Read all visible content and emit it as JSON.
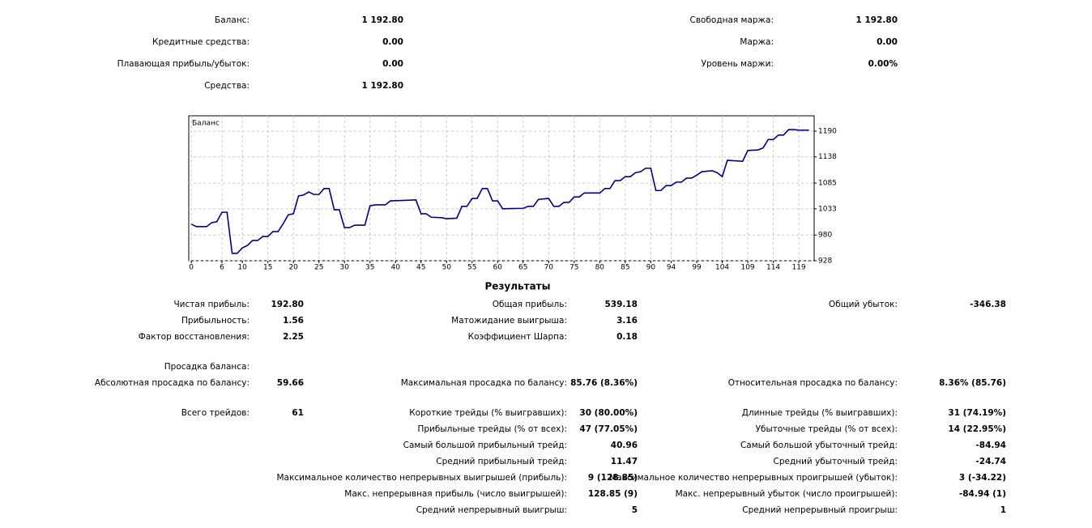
{
  "summary": {
    "left": [
      {
        "label": "Баланс:",
        "value": "1 192.80"
      },
      {
        "label": "Кредитные средства:",
        "value": "0.00"
      },
      {
        "label": "Плавающая прибыль/убыток:",
        "value": "0.00"
      },
      {
        "label": "Средства:",
        "value": "1 192.80"
      }
    ],
    "right": [
      {
        "label": "Свободная маржа:",
        "value": "1 192.80"
      },
      {
        "label": "Маржа:",
        "value": "0.00"
      },
      {
        "label": "Уровень маржи:",
        "value": "0.00%"
      }
    ]
  },
  "chart_data": {
    "type": "line",
    "title": "Баланс",
    "color": "#00008b",
    "x": [
      0,
      1,
      3,
      4,
      5,
      6,
      7,
      8,
      9,
      10,
      11,
      12,
      13,
      14,
      15,
      16,
      17,
      18,
      19,
      20,
      21,
      22,
      23,
      24,
      25,
      26,
      27,
      28,
      29,
      30,
      31,
      32,
      34,
      35,
      36,
      38,
      39,
      44,
      45,
      46,
      47,
      49,
      50,
      52,
      53,
      54,
      55,
      56,
      57,
      58,
      59,
      60,
      61,
      65,
      66,
      67,
      68,
      70,
      71,
      72,
      73,
      74,
      75,
      76,
      77,
      80,
      81,
      82,
      83,
      84,
      85,
      86,
      87,
      88,
      89,
      90,
      91,
      92,
      93,
      94,
      95,
      96,
      97,
      98,
      99,
      100,
      102,
      103,
      104,
      105,
      108,
      109,
      111,
      112,
      113,
      114,
      115,
      116,
      117,
      118,
      119,
      121
    ],
    "values": [
      1002,
      997,
      997,
      1005,
      1007,
      1026,
      1026,
      943,
      943,
      954,
      959,
      969,
      969,
      977,
      977,
      987,
      987,
      1003,
      1021,
      1023,
      1059,
      1061,
      1067,
      1062,
      1062,
      1074,
      1074,
      1031,
      1031,
      995,
      995,
      1000,
      1000,
      1039,
      1041,
      1041,
      1049,
      1051,
      1023,
      1023,
      1016,
      1015,
      1013,
      1014,
      1038,
      1038,
      1054,
      1054,
      1074,
      1074,
      1049,
      1049,
      1033,
      1034,
      1038,
      1038,
      1052,
      1054,
      1038,
      1038,
      1046,
      1046,
      1057,
      1057,
      1065,
      1065,
      1074,
      1074,
      1090,
      1090,
      1098,
      1098,
      1106,
      1108,
      1115,
      1115,
      1070,
      1070,
      1080,
      1080,
      1087,
      1087,
      1095,
      1095,
      1101,
      1108,
      1110,
      1106,
      1098,
      1131,
      1129,
      1151,
      1152,
      1156,
      1173,
      1173,
      1182,
      1182,
      1193,
      1193,
      1192,
      1192
    ],
    "xlim": [
      -0.5,
      122
    ],
    "xticks": [
      0,
      6,
      10,
      15,
      20,
      25,
      30,
      35,
      40,
      45,
      50,
      55,
      60,
      65,
      70,
      75,
      80,
      85,
      90,
      94,
      99,
      104,
      109,
      114,
      119
    ],
    "ylim": [
      928,
      1221
    ],
    "yticks": [
      928,
      980,
      1033,
      1085,
      1138,
      1190
    ],
    "grid": true
  },
  "results": {
    "title": "Результаты",
    "sections": [
      [
        {
          "left": {
            "label": "Чистая прибыль:",
            "value": "192.80"
          },
          "middle": {
            "label": "Общая прибыль:",
            "value": "539.18"
          },
          "right": {
            "label": "Общий убыток:",
            "value": "-346.38"
          }
        },
        {
          "left": {
            "label": "Прибыльность:",
            "value": "1.56"
          },
          "middle": {
            "label": "Матожидание выигрыша:",
            "value": "3.16"
          }
        },
        {
          "left": {
            "label": "Фактор восстановления:",
            "value": "2.25"
          },
          "middle": {
            "label": "Коэффициент Шарпа:",
            "value": "0.18"
          }
        }
      ],
      [
        {
          "left": {
            "label": "Просадка баланса:"
          }
        },
        {
          "left": {
            "label": "Абсолютная просадка по балансу:",
            "value": "59.66"
          },
          "middle": {
            "label": "Максимальная просадка по балансу:",
            "value": "85.76 (8.36%)"
          },
          "right": {
            "label": "Относительная просадка по балансу:",
            "value": "8.36% (85.76)"
          }
        }
      ],
      [
        {
          "left": {
            "label": "Всего трейдов:",
            "value": "61"
          },
          "middle": {
            "label": "Короткие трейды (% выигравших):",
            "value": "30 (80.00%)"
          },
          "right": {
            "label": "Длинные трейды (% выигравших):",
            "value": "31 (74.19%)"
          }
        },
        {
          "middle": {
            "label": "Прибыльные трейды (% от всех):",
            "value": "47 (77.05%)"
          },
          "right": {
            "label": "Убыточные трейды (% от всех):",
            "value": "14 (22.95%)"
          }
        },
        {
          "middle": {
            "label": "Самый большой прибыльный трейд:",
            "value": "40.96"
          },
          "right": {
            "label": "Самый большой убыточный трейд:",
            "value": "-84.94"
          }
        },
        {
          "middle": {
            "label": "Средний прибыльный трейд:",
            "value": "11.47"
          },
          "right": {
            "label": "Средний убыточный трейд:",
            "value": "-24.74"
          }
        },
        {
          "middle": {
            "label": "Максимальное количество непрерывных выигрышей (прибыль):",
            "value": "9 (128.85)"
          },
          "right": {
            "label": "Максимальное количество непрерывных проигрышей (убыток):",
            "value": "3 (-34.22)"
          }
        },
        {
          "middle": {
            "label": "Макс. непрерывная прибыль (число выигрышей):",
            "value": "128.85 (9)"
          },
          "right": {
            "label": "Макс. непрерывный убыток (число проигрышей):",
            "value": "-84.94 (1)"
          }
        },
        {
          "middle": {
            "label": "Средний непрерывный выигрыш:",
            "value": "5"
          },
          "right": {
            "label": "Средний непрерывный проигрыш:",
            "value": "1"
          }
        }
      ]
    ]
  }
}
